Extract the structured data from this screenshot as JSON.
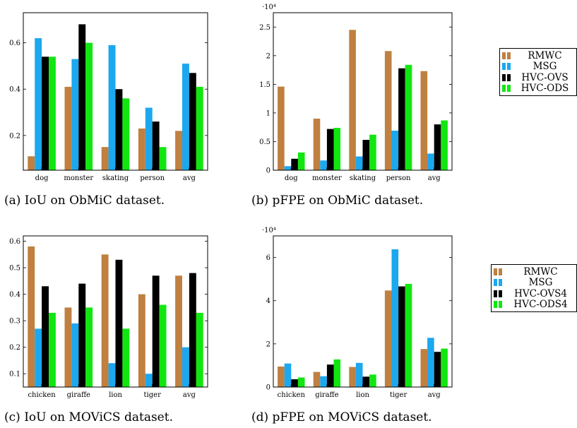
{
  "series_colors": {
    "RMWC": "#bf8040",
    "MSG": "#1ba8ef",
    "HVC-OVS": "#000000",
    "HVC-ODS": "#11e611"
  },
  "chart_data": [
    {
      "type": "bar",
      "caption": "(a) IoU on ObMiC dataset.",
      "categories": [
        "dog",
        "monster",
        "skating",
        "person",
        "avg"
      ],
      "series": [
        {
          "name": "RMWC",
          "values": [
            0.11,
            0.41,
            0.15,
            0.23,
            0.22
          ]
        },
        {
          "name": "MSG",
          "values": [
            0.62,
            0.53,
            0.59,
            0.32,
            0.51
          ]
        },
        {
          "name": "HVC-OVS",
          "values": [
            0.54,
            0.68,
            0.4,
            0.26,
            0.47
          ]
        },
        {
          "name": "HVC-ODS",
          "values": [
            0.54,
            0.6,
            0.36,
            0.15,
            0.41
          ]
        }
      ],
      "ylim": [
        0.05,
        0.73
      ],
      "yticks": [
        0.2,
        0.4,
        0.6
      ],
      "ytick_labels": [
        "0.2",
        "0.4",
        "0.6"
      ],
      "scale_label": ""
    },
    {
      "type": "bar",
      "caption": "(b) pFPE on ObMiC dataset.",
      "categories": [
        "dog",
        "monster",
        "skating",
        "person",
        "avg"
      ],
      "series": [
        {
          "name": "RMWC",
          "values": [
            14600,
            9000,
            24500,
            20800,
            17300
          ]
        },
        {
          "name": "MSG",
          "values": [
            700,
            1700,
            2400,
            6900,
            2900
          ]
        },
        {
          "name": "HVC-OVS",
          "values": [
            2000,
            7200,
            5300,
            17800,
            8000
          ]
        },
        {
          "name": "HVC-ODS",
          "values": [
            3100,
            7400,
            6200,
            18400,
            8700
          ]
        }
      ],
      "ylim": [
        0,
        27500
      ],
      "yticks": [
        0,
        5000,
        10000,
        15000,
        20000,
        25000
      ],
      "ytick_labels": [
        "0",
        "0.5",
        "1",
        "1.5",
        "2",
        "2.5"
      ],
      "scale_label": "·10⁴"
    },
    {
      "type": "bar",
      "caption": "(c) IoU on MOViCS dataset.",
      "categories": [
        "chicken",
        "giraffe",
        "lion",
        "tiger",
        "avg"
      ],
      "series": [
        {
          "name": "RMWC",
          "values": [
            0.58,
            0.35,
            0.55,
            0.4,
            0.47
          ]
        },
        {
          "name": "MSG",
          "values": [
            0.27,
            0.29,
            0.14,
            0.1,
            0.2
          ]
        },
        {
          "name": "HVC-OVS4",
          "values": [
            0.43,
            0.44,
            0.53,
            0.47,
            0.48
          ]
        },
        {
          "name": "HVC-ODS4",
          "values": [
            0.33,
            0.35,
            0.27,
            0.36,
            0.33
          ]
        }
      ],
      "ylim": [
        0.05,
        0.62
      ],
      "yticks": [
        0.1,
        0.2,
        0.3,
        0.4,
        0.5,
        0.6
      ],
      "ytick_labels": [
        "0.1",
        "0.2",
        "0.3",
        "0.4",
        "0.5",
        "0.6"
      ],
      "scale_label": ""
    },
    {
      "type": "bar",
      "caption": "(d) pFPE on MOViCS dataset.",
      "categories": [
        "chicken",
        "giraffe",
        "lion",
        "tiger",
        "avg"
      ],
      "series": [
        {
          "name": "RMWC",
          "values": [
            9500,
            7000,
            9300,
            44700,
            17600
          ]
        },
        {
          "name": "MSG",
          "values": [
            10900,
            5000,
            11200,
            63800,
            22800
          ]
        },
        {
          "name": "HVC-OVS4",
          "values": [
            3600,
            10400,
            4800,
            46600,
            16300
          ]
        },
        {
          "name": "HVC-ODS4",
          "values": [
            4400,
            12800,
            5800,
            47800,
            17800
          ]
        }
      ],
      "ylim": [
        0,
        70000
      ],
      "yticks": [
        0,
        20000,
        40000,
        60000
      ],
      "ytick_labels": [
        "0",
        "2",
        "4",
        "6"
      ],
      "scale_label": "·10⁴"
    }
  ],
  "legends": [
    {
      "entries": [
        "RMWC",
        "MSG",
        "HVC-OVS",
        "HVC-ODS"
      ]
    },
    {
      "entries": [
        "RMWC",
        "MSG",
        "HVC-OVS4",
        "HVC-ODS4"
      ]
    }
  ]
}
